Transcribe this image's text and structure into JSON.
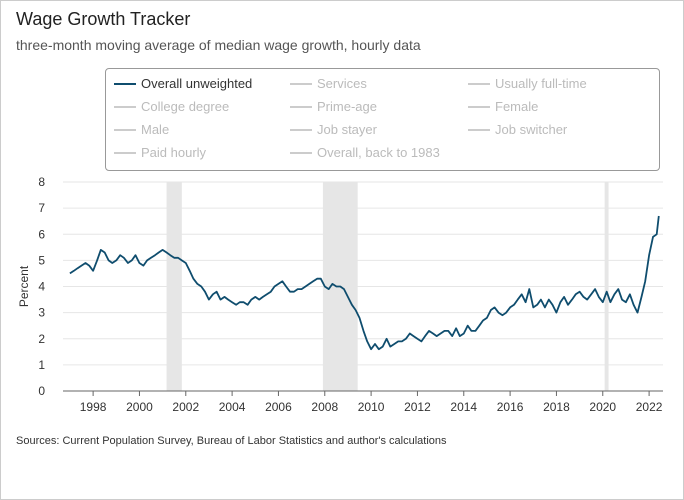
{
  "title": "Wage Growth Tracker",
  "subtitle": "three-month moving average of median wage growth, hourly data",
  "source": "Sources: Current Population Survey, Bureau of Labor Statistics and author's calculations",
  "legend": [
    {
      "label": "Overall unweighted",
      "active": true
    },
    {
      "label": "Services",
      "active": false
    },
    {
      "label": "Usually full-time",
      "active": false
    },
    {
      "label": "College degree",
      "active": false
    },
    {
      "label": "Prime-age",
      "active": false
    },
    {
      "label": "Female",
      "active": false
    },
    {
      "label": "Male",
      "active": false
    },
    {
      "label": "Job stayer",
      "active": false
    },
    {
      "label": "Job switcher",
      "active": false
    },
    {
      "label": "Paid hourly",
      "active": false
    },
    {
      "label": "Overall, back to 1983",
      "active": false
    }
  ],
  "colors": {
    "line": "#0f4d6e",
    "recession": "#e6e6e6",
    "grid": "#e6e6e6"
  },
  "chart_data": {
    "type": "line",
    "ylabel": "Percent",
    "xlim": [
      1996.7,
      2022.6
    ],
    "ylim": [
      0,
      8
    ],
    "yticks": [
      0,
      1,
      2,
      3,
      4,
      5,
      6,
      7,
      8
    ],
    "xticks": [
      1998,
      2000,
      2002,
      2004,
      2006,
      2008,
      2010,
      2012,
      2014,
      2016,
      2018,
      2020,
      2022
    ],
    "recessions": [
      [
        2001.17,
        2001.83
      ],
      [
        2007.92,
        2009.42
      ],
      [
        2020.08,
        2020.25
      ]
    ],
    "series": [
      {
        "name": "Overall unweighted",
        "x": [
          1997.0,
          1997.17,
          1997.33,
          1997.5,
          1997.67,
          1997.83,
          1998.0,
          1998.17,
          1998.33,
          1998.5,
          1998.67,
          1998.83,
          1999.0,
          1999.17,
          1999.33,
          1999.5,
          1999.67,
          1999.83,
          2000.0,
          2000.17,
          2000.33,
          2000.5,
          2000.67,
          2000.83,
          2001.0,
          2001.17,
          2001.33,
          2001.5,
          2001.67,
          2001.83,
          2002.0,
          2002.17,
          2002.33,
          2002.5,
          2002.67,
          2002.83,
          2003.0,
          2003.17,
          2003.33,
          2003.5,
          2003.67,
          2003.83,
          2004.0,
          2004.17,
          2004.33,
          2004.5,
          2004.67,
          2004.83,
          2005.0,
          2005.17,
          2005.33,
          2005.5,
          2005.67,
          2005.83,
          2006.0,
          2006.17,
          2006.33,
          2006.5,
          2006.67,
          2006.83,
          2007.0,
          2007.17,
          2007.33,
          2007.5,
          2007.67,
          2007.83,
          2008.0,
          2008.17,
          2008.33,
          2008.5,
          2008.67,
          2008.83,
          2009.0,
          2009.17,
          2009.33,
          2009.5,
          2009.67,
          2009.83,
          2010.0,
          2010.17,
          2010.33,
          2010.5,
          2010.67,
          2010.83,
          2011.0,
          2011.17,
          2011.33,
          2011.5,
          2011.67,
          2011.83,
          2012.0,
          2012.17,
          2012.33,
          2012.5,
          2012.67,
          2012.83,
          2013.0,
          2013.17,
          2013.33,
          2013.5,
          2013.67,
          2013.83,
          2014.0,
          2014.17,
          2014.33,
          2014.5,
          2014.67,
          2014.83,
          2015.0,
          2015.17,
          2015.33,
          2015.5,
          2015.67,
          2015.83,
          2016.0,
          2016.17,
          2016.33,
          2016.5,
          2016.67,
          2016.83,
          2017.0,
          2017.17,
          2017.33,
          2017.5,
          2017.67,
          2017.83,
          2018.0,
          2018.17,
          2018.33,
          2018.5,
          2018.67,
          2018.83,
          2019.0,
          2019.17,
          2019.33,
          2019.5,
          2019.67,
          2019.83,
          2020.0,
          2020.17,
          2020.33,
          2020.5,
          2020.67,
          2020.83,
          2021.0,
          2021.17,
          2021.33,
          2021.5,
          2021.67,
          2021.83,
          2022.0,
          2022.17,
          2022.33,
          2022.42
        ],
        "values": [
          4.5,
          4.6,
          4.7,
          4.8,
          4.9,
          4.8,
          4.6,
          5.0,
          5.4,
          5.3,
          5.0,
          4.9,
          5.0,
          5.2,
          5.1,
          4.9,
          5.0,
          5.2,
          4.9,
          4.8,
          5.0,
          5.1,
          5.2,
          5.3,
          5.4,
          5.3,
          5.2,
          5.1,
          5.1,
          5.0,
          4.9,
          4.6,
          4.3,
          4.1,
          4.0,
          3.8,
          3.5,
          3.7,
          3.8,
          3.5,
          3.6,
          3.5,
          3.4,
          3.3,
          3.4,
          3.4,
          3.3,
          3.5,
          3.6,
          3.5,
          3.6,
          3.7,
          3.8,
          4.0,
          4.1,
          4.2,
          4.0,
          3.8,
          3.8,
          3.9,
          3.9,
          4.0,
          4.1,
          4.2,
          4.3,
          4.3,
          4.0,
          3.9,
          4.1,
          4.0,
          4.0,
          3.9,
          3.6,
          3.3,
          3.1,
          2.8,
          2.3,
          1.9,
          1.6,
          1.8,
          1.6,
          1.7,
          2.0,
          1.7,
          1.8,
          1.9,
          1.9,
          2.0,
          2.2,
          2.1,
          2.0,
          1.9,
          2.1,
          2.3,
          2.2,
          2.1,
          2.2,
          2.3,
          2.3,
          2.1,
          2.4,
          2.1,
          2.2,
          2.5,
          2.3,
          2.3,
          2.5,
          2.7,
          2.8,
          3.1,
          3.2,
          3.0,
          2.9,
          3.0,
          3.2,
          3.3,
          3.5,
          3.7,
          3.4,
          3.9,
          3.2,
          3.3,
          3.5,
          3.2,
          3.5,
          3.3,
          3.0,
          3.4,
          3.6,
          3.3,
          3.5,
          3.7,
          3.8,
          3.6,
          3.5,
          3.7,
          3.9,
          3.6,
          3.4,
          3.8,
          3.4,
          3.7,
          3.9,
          3.5,
          3.4,
          3.7,
          3.3,
          3.0,
          3.6,
          4.2,
          5.2,
          5.9,
          6.0,
          6.7
        ]
      }
    ]
  }
}
